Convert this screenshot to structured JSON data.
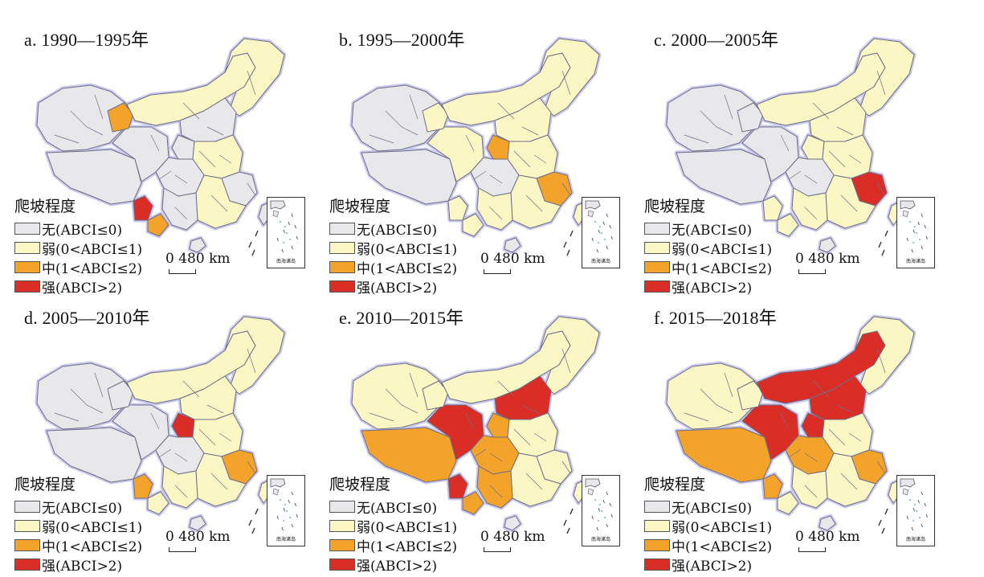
{
  "colors": {
    "none": "#e8e8ea",
    "weak": "#fbf7c4",
    "medium": "#f3a329",
    "strong": "#da2d26",
    "border": "#6e6e8a"
  },
  "legend": {
    "title": "爬坡程度",
    "items": [
      {
        "key": "none",
        "label": "无(ABCI≤0)"
      },
      {
        "key": "weak",
        "label": "弱(0<ABCI≤1)"
      },
      {
        "key": "medium",
        "label": "中(1<ABCI≤2)"
      },
      {
        "key": "strong",
        "label": "强(ABCI>2)"
      }
    ]
  },
  "scale_label": "0 480 km",
  "inset_label": "南海诸岛",
  "panels": [
    {
      "title": "a. 1990—1995年",
      "regions": {
        "ne": "weak",
        "inner_mongolia": "weak",
        "xinjiang": "none",
        "tibet": "none",
        "qinghai": "none",
        "hexi_hot": "medium",
        "north_china": "none",
        "central": "weak",
        "sichuan": "none",
        "southeast": "weak",
        "southwest": "none",
        "yunnan_hot": "strong",
        "yunnan_hot2": "medium",
        "yangtze": "none",
        "northwest_hot": "none",
        "taiwan": "none",
        "hainan": "none"
      }
    },
    {
      "title": "b. 1995—2000年",
      "regions": {
        "ne": "weak",
        "inner_mongolia": "weak",
        "xinjiang": "none",
        "tibet": "none",
        "qinghai": "weak",
        "hexi_hot": "weak",
        "north_china": "weak",
        "central": "weak",
        "sichuan": "none",
        "southeast": "weak",
        "southwest": "weak",
        "yunnan_hot": "weak",
        "yunnan_hot2": "weak",
        "yangtze": "medium",
        "northwest_hot": "medium",
        "taiwan": "weak",
        "hainan": "none"
      }
    },
    {
      "title": "c. 2000—2005年",
      "regions": {
        "ne": "weak",
        "inner_mongolia": "weak",
        "xinjiang": "none",
        "tibet": "none",
        "qinghai": "none",
        "hexi_hot": "none",
        "north_china": "weak",
        "central": "weak",
        "sichuan": "none",
        "southeast": "weak",
        "southwest": "weak",
        "yunnan_hot": "weak",
        "yunnan_hot2": "weak",
        "yangtze": "strong",
        "northwest_hot": "weak",
        "taiwan": "weak",
        "hainan": "none"
      }
    },
    {
      "title": "d. 2005—2010年",
      "regions": {
        "ne": "weak",
        "inner_mongolia": "weak",
        "xinjiang": "none",
        "tibet": "none",
        "qinghai": "none",
        "hexi_hot": "none",
        "north_china": "weak",
        "central": "weak",
        "sichuan": "none",
        "southeast": "weak",
        "southwest": "weak",
        "yunnan_hot": "medium",
        "yunnan_hot2": "weak",
        "yangtze": "medium",
        "northwest_hot": "strong",
        "taiwan": "weak",
        "hainan": "none"
      }
    },
    {
      "title": "e. 2010—2015年",
      "regions": {
        "ne": "weak",
        "inner_mongolia": "weak",
        "xinjiang": "weak",
        "tibet": "medium",
        "qinghai": "strong",
        "hexi_hot": "weak",
        "north_china": "strong",
        "central": "weak",
        "sichuan": "medium",
        "southeast": "weak",
        "southwest": "medium",
        "yunnan_hot": "strong",
        "yunnan_hot2": "medium",
        "yangtze": "weak",
        "northwest_hot": "medium",
        "taiwan": "weak",
        "hainan": "none"
      }
    },
    {
      "title": "f. 2015—2018年",
      "regions": {
        "ne": "weak",
        "inner_mongolia": "strong",
        "xinjiang": "weak",
        "tibet": "medium",
        "qinghai": "strong",
        "hexi_hot": "weak",
        "north_china": "strong",
        "central": "weak",
        "sichuan": "medium",
        "southeast": "weak",
        "southwest": "weak",
        "yunnan_hot": "medium",
        "yunnan_hot2": "weak",
        "yangtze": "medium",
        "northwest_hot": "strong",
        "taiwan": "weak",
        "hainan": "none"
      }
    }
  ]
}
